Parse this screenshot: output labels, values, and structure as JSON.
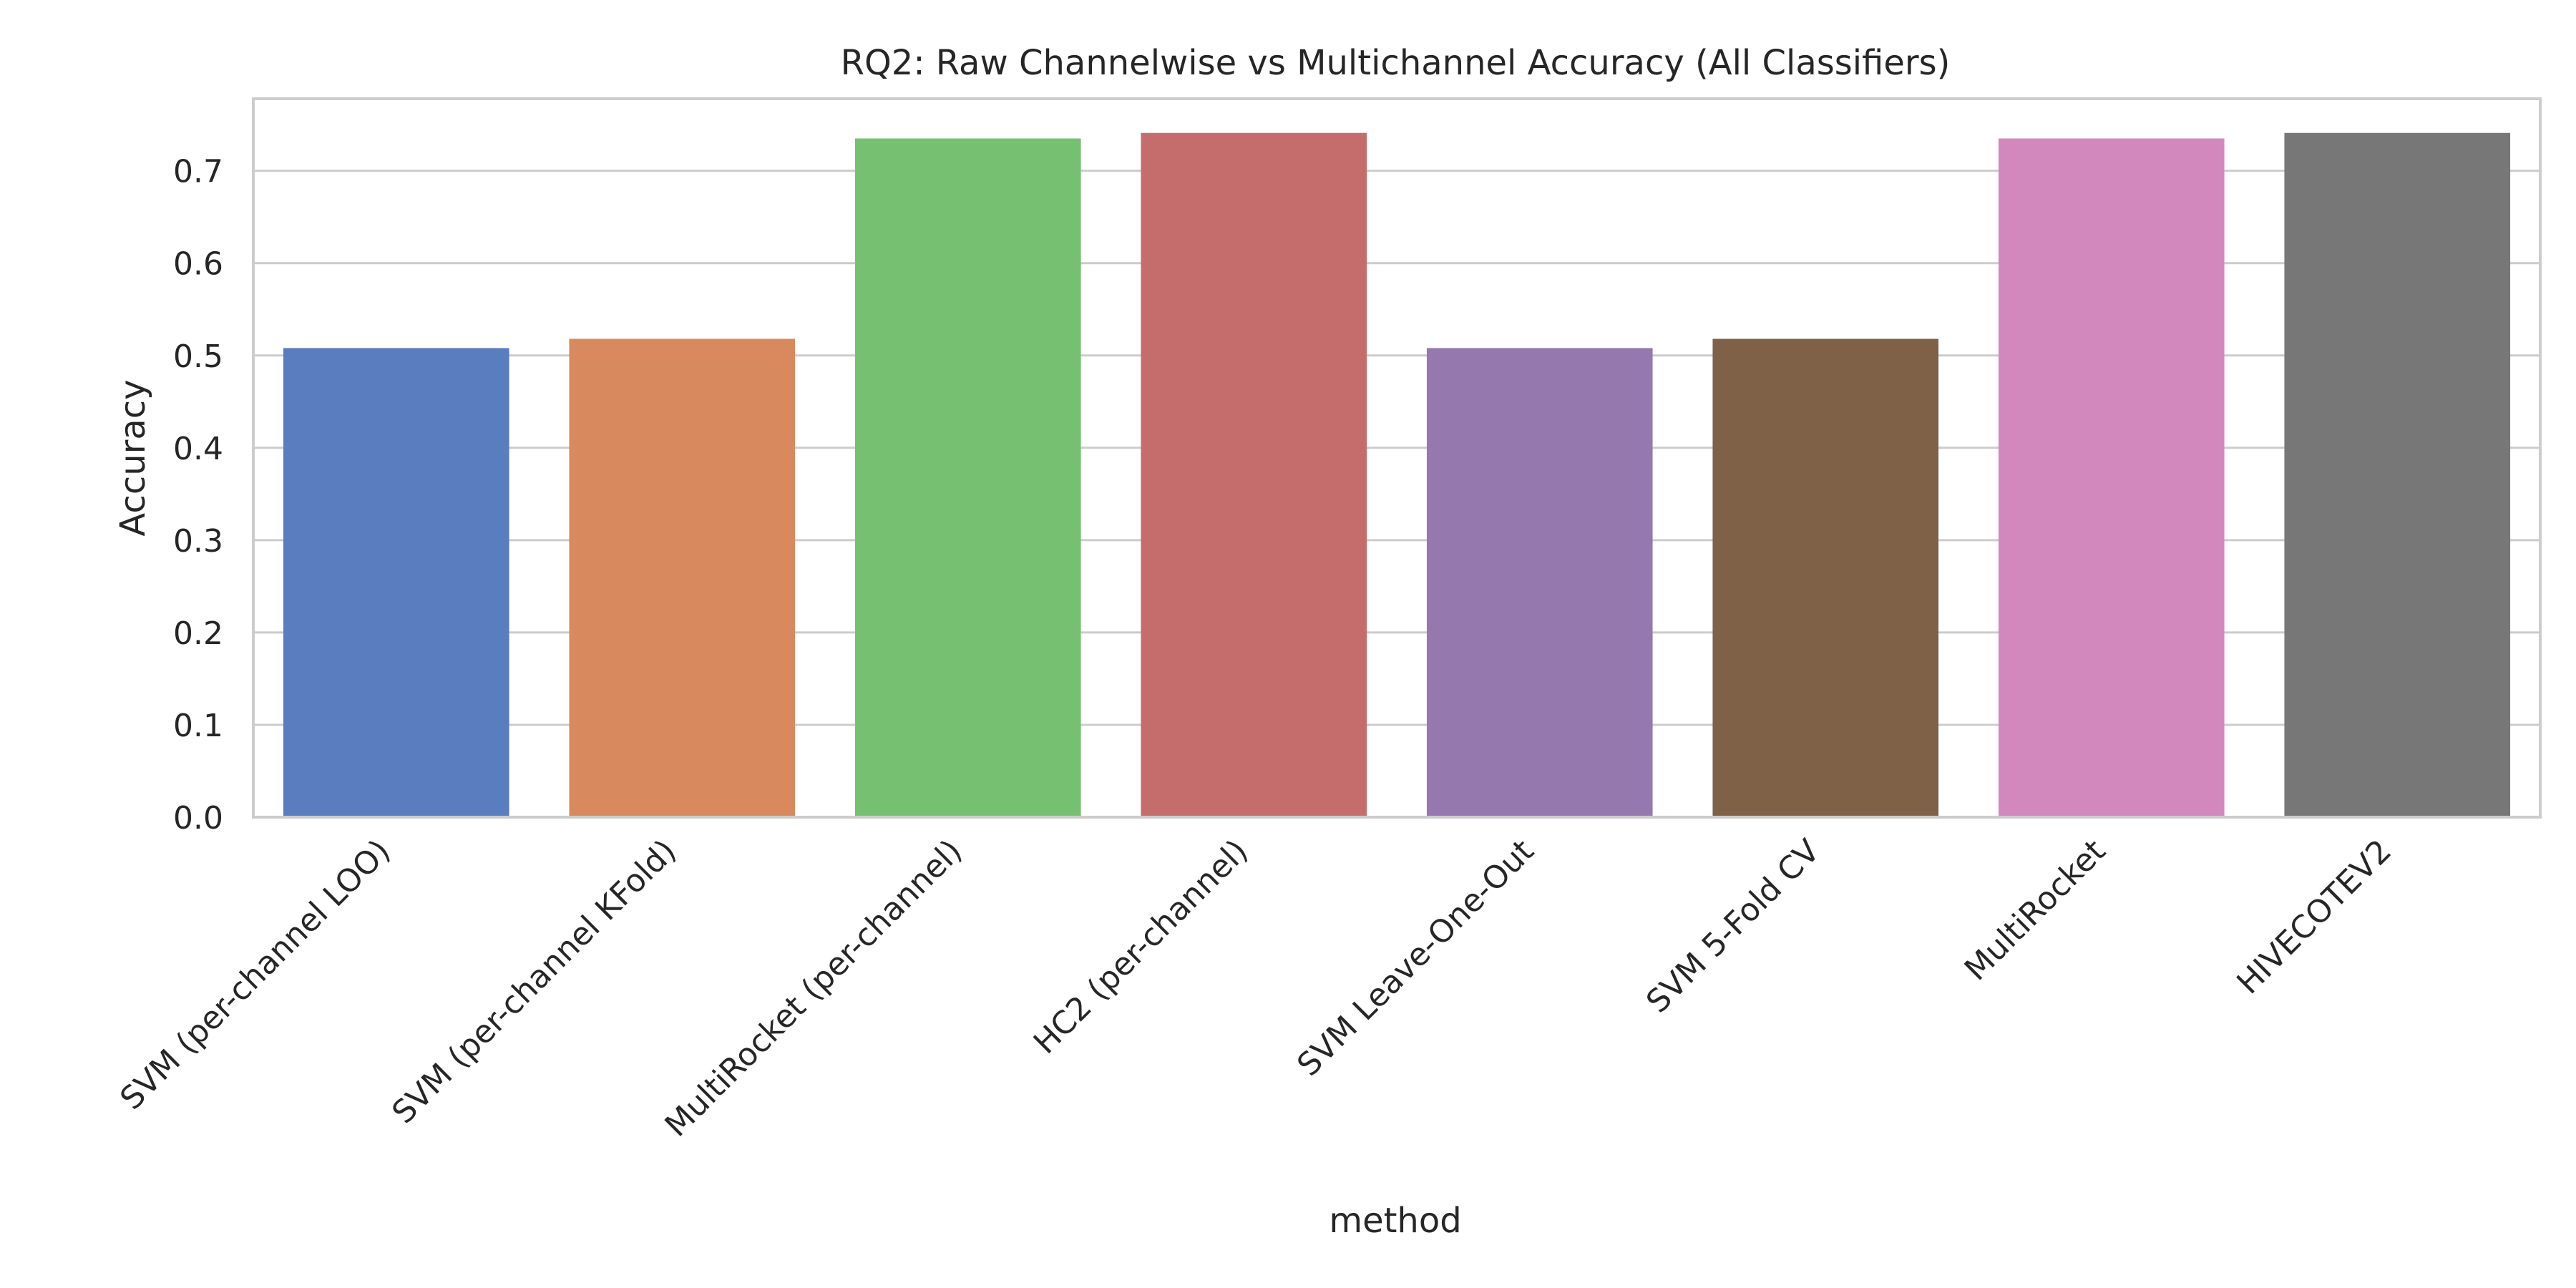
{
  "chart_data": {
    "type": "bar",
    "title": "RQ2: Raw Channelwise vs Multichannel Accuracy (All Classifiers)",
    "xlabel": "method",
    "ylabel": "Accuracy",
    "categories": [
      "SVM (per-channel LOO)",
      "SVM (per-channel KFold)",
      "MultiRocket (per-channel)",
      "HC2 (per-channel)",
      "SVM Leave-One-Out",
      "SVM 5-Fold CV",
      "MultiRocket",
      "HIVECOTEV2"
    ],
    "values": [
      0.508,
      0.518,
      0.735,
      0.741,
      0.508,
      0.518,
      0.735,
      0.741
    ],
    "colors": [
      "#5a7dc0",
      "#d8895e",
      "#76c071",
      "#c56d6c",
      "#9578ad",
      "#7f6148",
      "#d288bc",
      "#777777"
    ],
    "yticks": [
      "0.0",
      "0.1",
      "0.2",
      "0.3",
      "0.4",
      "0.5",
      "0.6",
      "0.7"
    ],
    "ylim": [
      0,
      0.778
    ],
    "grid": true,
    "legend": "none"
  }
}
